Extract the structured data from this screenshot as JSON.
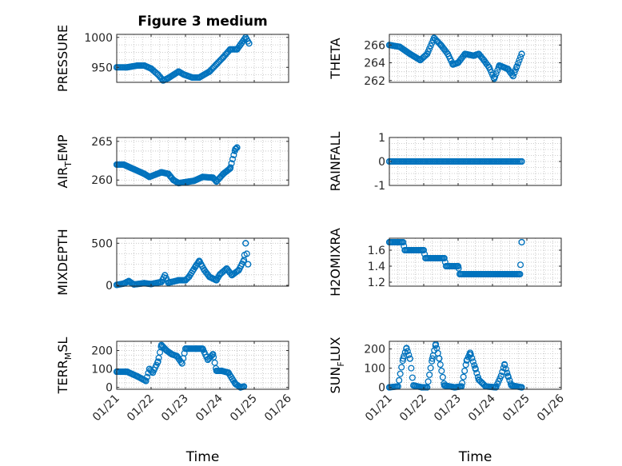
{
  "figure": {
    "title": "Figure 3 medium",
    "marker_color": "#0072BD",
    "axis_color": "#262626",
    "grid_color": "#bdbdbd"
  },
  "chart_data": [
    {
      "id": "pressure",
      "type": "scatter",
      "title": "Figure 3 medium",
      "ylabel": "PRESSURE",
      "ylabel_sub": "",
      "ylabel_suffix": "",
      "xlim": [
        0,
        5
      ],
      "ylim": [
        925,
        1005
      ],
      "yticks": [
        950,
        1000
      ],
      "ytick_labels": [
        "950",
        "1000"
      ],
      "xticks": [
        0,
        1,
        2,
        3,
        4,
        5
      ],
      "xtick_labels": [],
      "xlabel": "",
      "knots": [
        [
          0.0,
          950
        ],
        [
          0.3,
          950
        ],
        [
          0.6,
          953
        ],
        [
          0.8,
          953
        ],
        [
          1.0,
          948
        ],
        [
          1.2,
          938
        ],
        [
          1.35,
          928
        ],
        [
          1.5,
          932
        ],
        [
          1.8,
          943
        ],
        [
          1.95,
          938
        ],
        [
          2.2,
          933
        ],
        [
          2.4,
          933
        ],
        [
          2.7,
          943
        ],
        [
          2.9,
          955
        ],
        [
          3.1,
          967
        ],
        [
          3.3,
          980
        ],
        [
          3.5,
          980
        ],
        [
          3.6,
          988
        ],
        [
          3.75,
          1000
        ],
        [
          3.85,
          990
        ]
      ]
    },
    {
      "id": "theta",
      "type": "scatter",
      "title": "",
      "ylabel": "THETA",
      "ylabel_sub": "",
      "ylabel_suffix": "",
      "xlim": [
        0,
        5
      ],
      "ylim": [
        261.8,
        267.2
      ],
      "yticks": [
        262,
        264,
        266
      ],
      "ytick_labels": [
        "262",
        "264",
        "266"
      ],
      "xticks": [
        0,
        1,
        2,
        3,
        4,
        5
      ],
      "xtick_labels": [],
      "xlabel": "",
      "knots": [
        [
          0.0,
          266
        ],
        [
          0.3,
          265.8
        ],
        [
          0.6,
          265
        ],
        [
          0.9,
          264.3
        ],
        [
          1.1,
          265
        ],
        [
          1.3,
          266.8
        ],
        [
          1.5,
          266
        ],
        [
          1.7,
          265
        ],
        [
          1.85,
          263.8
        ],
        [
          2.0,
          264
        ],
        [
          2.2,
          265
        ],
        [
          2.45,
          264.8
        ],
        [
          2.6,
          265
        ],
        [
          2.75,
          264.3
        ],
        [
          2.9,
          263.5
        ],
        [
          3.05,
          262.2
        ],
        [
          3.2,
          263.7
        ],
        [
          3.45,
          263.3
        ],
        [
          3.6,
          262.5
        ],
        [
          3.7,
          263.5
        ],
        [
          3.85,
          265
        ]
      ]
    },
    {
      "id": "air_temp",
      "type": "scatter",
      "title": "",
      "ylabel": "AIR",
      "ylabel_sub": "T",
      "ylabel_suffix": "EMP",
      "xlim": [
        0,
        5
      ],
      "ylim": [
        259.3,
        265.5
      ],
      "yticks": [
        260,
        265
      ],
      "ytick_labels": [
        "260",
        "265"
      ],
      "xticks": [
        0,
        1,
        2,
        3,
        4,
        5
      ],
      "xtick_labels": [],
      "xlabel": "",
      "knots": [
        [
          0.0,
          262
        ],
        [
          0.2,
          262
        ],
        [
          0.5,
          261.4
        ],
        [
          0.8,
          260.8
        ],
        [
          0.95,
          260.4
        ],
        [
          1.3,
          261
        ],
        [
          1.5,
          260.8
        ],
        [
          1.65,
          260
        ],
        [
          1.8,
          259.6
        ],
        [
          2.1,
          259.8
        ],
        [
          2.25,
          259.9
        ],
        [
          2.5,
          260.4
        ],
        [
          2.8,
          260.3
        ],
        [
          2.9,
          259.8
        ],
        [
          3.1,
          260.8
        ],
        [
          3.3,
          261.5
        ],
        [
          3.45,
          264
        ],
        [
          3.5,
          264.2
        ]
      ]
    },
    {
      "id": "rainfall",
      "type": "scatter",
      "title": "",
      "ylabel": "RAINFALL",
      "ylabel_sub": "",
      "ylabel_suffix": "",
      "xlim": [
        0,
        5
      ],
      "ylim": [
        -1,
        1
      ],
      "yticks": [
        -1,
        0,
        1
      ],
      "ytick_labels": [
        "-1",
        "0",
        "1"
      ],
      "xticks": [
        0,
        1,
        2,
        3,
        4,
        5
      ],
      "xtick_labels": [],
      "xlabel": "",
      "knots": [
        [
          0.0,
          0
        ],
        [
          3.85,
          0
        ]
      ]
    },
    {
      "id": "mixdepth",
      "type": "scatter",
      "title": "",
      "ylabel": "MIXDEPTH",
      "ylabel_sub": "",
      "ylabel_suffix": "",
      "xlim": [
        0,
        5
      ],
      "ylim": [
        -10,
        560
      ],
      "yticks": [
        0,
        500
      ],
      "ytick_labels": [
        "0",
        "500"
      ],
      "xticks": [
        0,
        1,
        2,
        3,
        4,
        5
      ],
      "xtick_labels": [],
      "xlabel": "",
      "knots": [
        [
          0.0,
          5
        ],
        [
          0.2,
          20
        ],
        [
          0.35,
          50
        ],
        [
          0.5,
          10
        ],
        [
          0.8,
          25
        ],
        [
          1.0,
          15
        ],
        [
          1.3,
          40
        ],
        [
          1.4,
          120
        ],
        [
          1.5,
          30
        ],
        [
          1.8,
          60
        ],
        [
          2.0,
          60
        ],
        [
          2.1,
          100
        ],
        [
          2.3,
          230
        ],
        [
          2.4,
          290
        ],
        [
          2.55,
          180
        ],
        [
          2.7,
          100
        ],
        [
          2.9,
          60
        ],
        [
          3.0,
          130
        ],
        [
          3.2,
          200
        ],
        [
          3.35,
          120
        ],
        [
          3.55,
          180
        ],
        [
          3.7,
          300
        ],
        [
          3.75,
          500
        ],
        [
          3.82,
          250
        ]
      ]
    },
    {
      "id": "h2omixra",
      "type": "scatter",
      "title": "",
      "ylabel": "H2OMIXRA",
      "ylabel_sub": "",
      "ylabel_suffix": "",
      "xlim": [
        0,
        5
      ],
      "ylim": [
        1.15,
        1.75
      ],
      "yticks": [
        1.2,
        1.4,
        1.6
      ],
      "ytick_labels": [
        "1.2",
        "1.4",
        "1.6"
      ],
      "xticks": [
        0,
        1,
        2,
        3,
        4,
        5
      ],
      "xtick_labels": [],
      "xlabel": "",
      "knots": [
        [
          0.0,
          1.7
        ],
        [
          0.4,
          1.7
        ],
        [
          0.45,
          1.6
        ],
        [
          1.0,
          1.6
        ],
        [
          1.05,
          1.5
        ],
        [
          1.6,
          1.5
        ],
        [
          1.65,
          1.4
        ],
        [
          2.0,
          1.4
        ],
        [
          2.05,
          1.3
        ],
        [
          3.8,
          1.3
        ],
        [
          3.85,
          1.7
        ]
      ]
    },
    {
      "id": "terr_msl",
      "type": "scatter",
      "title": "",
      "ylabel": "TERR",
      "ylabel_sub": "M",
      "ylabel_suffix": "SL",
      "xlim": [
        0,
        5
      ],
      "ylim": [
        -10,
        250
      ],
      "yticks": [
        0,
        100,
        200
      ],
      "ytick_labels": [
        "0",
        "100",
        "200"
      ],
      "xticks": [
        0,
        1,
        2,
        3,
        4,
        5
      ],
      "xtick_labels": [
        "01/21",
        "01/22",
        "01/23",
        "01/24",
        "01/25",
        "01/26"
      ],
      "xlabel": "Time",
      "knots": [
        [
          0.0,
          85
        ],
        [
          0.3,
          85
        ],
        [
          0.6,
          60
        ],
        [
          0.85,
          35
        ],
        [
          0.95,
          100
        ],
        [
          1.05,
          80
        ],
        [
          1.2,
          140
        ],
        [
          1.3,
          230
        ],
        [
          1.45,
          200
        ],
        [
          1.6,
          180
        ],
        [
          1.75,
          170
        ],
        [
          1.9,
          130
        ],
        [
          2.0,
          210
        ],
        [
          2.3,
          210
        ],
        [
          2.5,
          210
        ],
        [
          2.65,
          150
        ],
        [
          2.8,
          180
        ],
        [
          2.9,
          90
        ],
        [
          3.05,
          90
        ],
        [
          3.25,
          80
        ],
        [
          3.45,
          20
        ],
        [
          3.6,
          0
        ],
        [
          3.7,
          5
        ]
      ]
    },
    {
      "id": "sun_flux",
      "type": "scatter",
      "title": "",
      "ylabel": "SUN",
      "ylabel_sub": "F",
      "ylabel_suffix": "LUX",
      "xlim": [
        0,
        5
      ],
      "ylim": [
        -10,
        240
      ],
      "yticks": [
        0,
        100,
        200
      ],
      "ytick_labels": [
        "0",
        "100",
        "200"
      ],
      "xticks": [
        0,
        1,
        2,
        3,
        4,
        5
      ],
      "xtick_labels": [
        "01/21",
        "01/22",
        "01/23",
        "01/24",
        "01/25",
        "01/26"
      ],
      "xlabel": "Time",
      "knots": [
        [
          0.0,
          0
        ],
        [
          0.25,
          5
        ],
        [
          0.4,
          150
        ],
        [
          0.5,
          205
        ],
        [
          0.6,
          150
        ],
        [
          0.7,
          10
        ],
        [
          0.95,
          0
        ],
        [
          1.1,
          0
        ],
        [
          1.25,
          150
        ],
        [
          1.35,
          225
        ],
        [
          1.45,
          150
        ],
        [
          1.6,
          10
        ],
        [
          1.9,
          0
        ],
        [
          2.1,
          5
        ],
        [
          2.25,
          140
        ],
        [
          2.35,
          180
        ],
        [
          2.5,
          100
        ],
        [
          2.6,
          40
        ],
        [
          2.8,
          5
        ],
        [
          3.1,
          0
        ],
        [
          3.25,
          60
        ],
        [
          3.35,
          120
        ],
        [
          3.45,
          60
        ],
        [
          3.55,
          10
        ],
        [
          3.85,
          0
        ]
      ]
    }
  ]
}
